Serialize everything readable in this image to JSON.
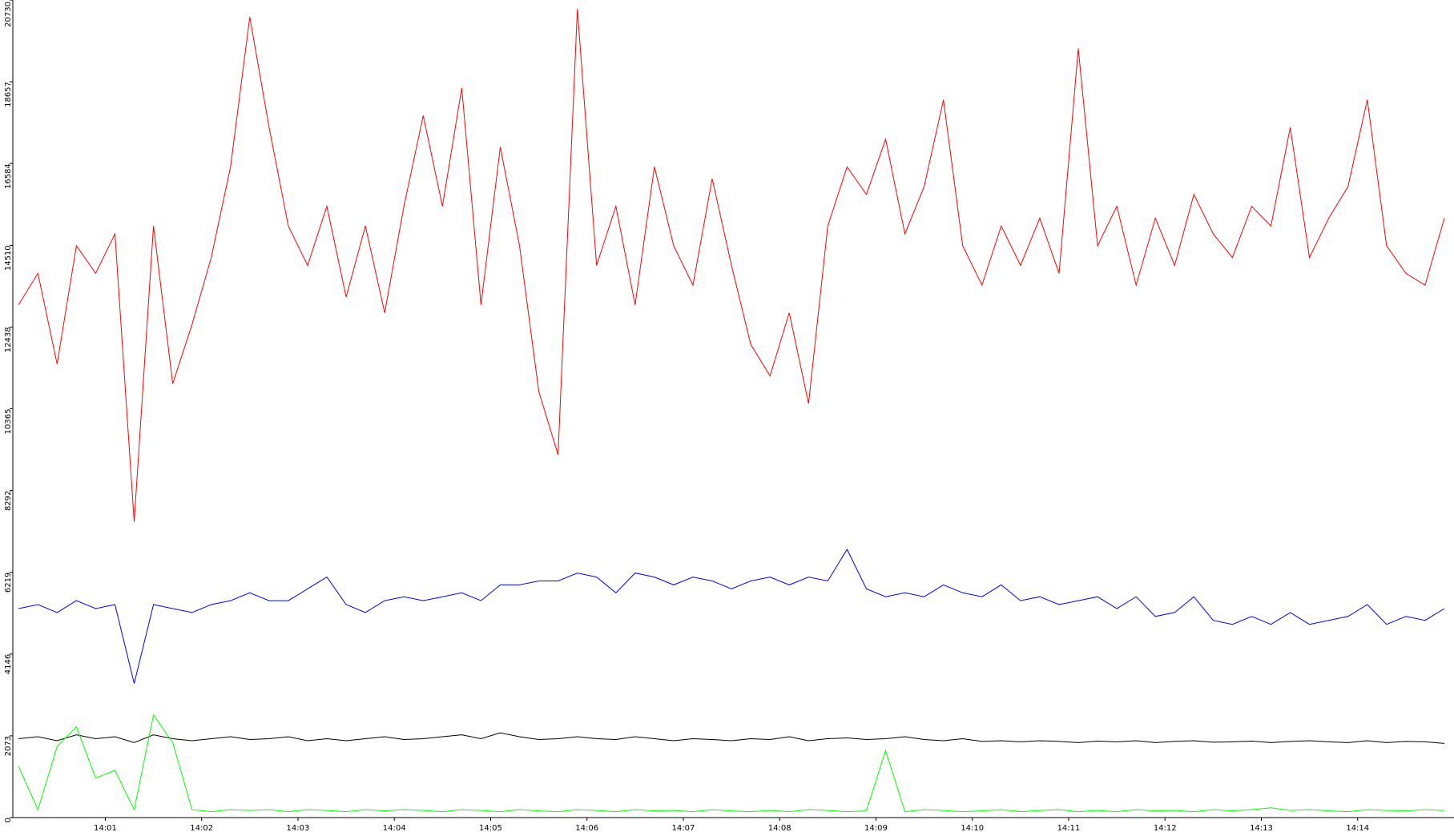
{
  "chart_data": {
    "type": "line",
    "x": [
      0.1,
      0.3,
      0.5,
      0.7,
      0.9,
      1.1,
      1.3,
      1.5,
      1.7,
      1.9,
      2.1,
      2.3,
      2.5,
      2.7,
      2.9,
      3.1,
      3.3,
      3.5,
      3.7,
      3.9,
      4.1,
      4.3,
      4.5,
      4.7,
      4.9,
      5.1,
      5.3,
      5.5,
      5.7,
      5.9,
      6.1,
      6.3,
      6.5,
      6.7,
      6.9,
      7.1,
      7.3,
      7.5,
      7.7,
      7.9,
      8.1,
      8.3,
      8.5,
      8.7,
      8.9,
      9.1,
      9.3,
      9.5,
      9.7,
      9.9,
      10.1,
      10.3,
      10.5,
      10.7,
      10.9,
      11.1,
      11.3,
      11.5,
      11.7,
      11.9,
      12.1,
      12.3,
      12.5,
      12.7,
      12.9,
      13.1,
      13.3,
      13.5,
      13.7,
      13.9,
      14.1,
      14.3,
      14.5,
      14.7,
      14.9
    ],
    "series": [
      {
        "color": "#ff0000",
        "values": [
          13000,
          13800,
          11500,
          14500,
          13800,
          14800,
          7500,
          15000,
          11000,
          12500,
          14200,
          16500,
          20300,
          17500,
          15000,
          14000,
          15500,
          13200,
          15000,
          12800,
          15500,
          17800,
          15500,
          18500,
          13000,
          17000,
          14500,
          10800,
          9200,
          20500,
          14000,
          15500,
          13000,
          16500,
          14500,
          13500,
          16200,
          14000,
          12000,
          11200,
          12800,
          10500,
          15000,
          16500,
          15800,
          17200,
          14800,
          16000,
          18200,
          14500,
          13500,
          15000,
          14000,
          15200,
          13800,
          19500,
          14500,
          15500,
          13500,
          15200,
          14000,
          15800,
          14800,
          14200,
          15500,
          15000,
          17500,
          14200,
          15200,
          16000,
          18200,
          14500,
          13800,
          13500,
          15200
        ]
      },
      {
        "color": "#0000ff",
        "values": [
          5300,
          5400,
          5200,
          5500,
          5300,
          5400,
          3400,
          5400,
          5300,
          5200,
          5400,
          5500,
          5700,
          5500,
          5500,
          5800,
          6100,
          5400,
          5200,
          5500,
          5600,
          5500,
          5600,
          5700,
          5500,
          5900,
          5900,
          6000,
          6000,
          6200,
          6100,
          5700,
          6200,
          6100,
          5900,
          6100,
          6000,
          5800,
          6000,
          6100,
          5900,
          6100,
          6000,
          6800,
          5800,
          5600,
          5700,
          5600,
          5900,
          5700,
          5600,
          5900,
          5500,
          5600,
          5400,
          5500,
          5600,
          5300,
          5600,
          5100,
          5200,
          5600,
          5000,
          4900,
          5100,
          4900,
          5200,
          4900,
          5000,
          5100,
          5400,
          4900,
          5100,
          5000,
          5300
        ]
      },
      {
        "color": "#000000",
        "values": [
          2000,
          2050,
          1950,
          2100,
          2000,
          2050,
          1900,
          2100,
          2000,
          1950,
          2000,
          2050,
          1980,
          2000,
          2050,
          1950,
          2000,
          1950,
          2000,
          2050,
          1980,
          2000,
          2050,
          2100,
          2000,
          2150,
          2050,
          1980,
          2000,
          2050,
          2000,
          1980,
          2050,
          2000,
          1950,
          2000,
          1980,
          1950,
          2000,
          1980,
          2050,
          1950,
          2000,
          2020,
          1980,
          2000,
          2050,
          1980,
          1950,
          2000,
          1930,
          1950,
          1920,
          1950,
          1930,
          1900,
          1940,
          1920,
          1950,
          1900,
          1930,
          1950,
          1910,
          1920,
          1940,
          1900,
          1930,
          1950,
          1920,
          1900,
          1950,
          1900,
          1930,
          1920,
          1880
        ]
      },
      {
        "color": "#00ff00",
        "values": [
          1300,
          200,
          1800,
          2300,
          1000,
          1200,
          200,
          2600,
          1900,
          200,
          150,
          200,
          180,
          200,
          150,
          200,
          180,
          150,
          200,
          170,
          200,
          180,
          150,
          200,
          180,
          150,
          200,
          170,
          150,
          200,
          180,
          150,
          200,
          170,
          180,
          150,
          200,
          170,
          150,
          180,
          150,
          200,
          180,
          150,
          170,
          1700,
          150,
          200,
          180,
          150,
          170,
          200,
          150,
          180,
          200,
          150,
          180,
          150,
          200,
          170,
          180,
          150,
          200,
          170,
          200,
          250,
          180,
          200,
          170,
          150,
          200,
          180,
          170,
          200,
          180
        ]
      }
    ],
    "xlim": [
      0.04,
      15.0
    ],
    "xticks": [
      {
        "value": 1,
        "label": "14:01"
      },
      {
        "value": 2,
        "label": "14:02"
      },
      {
        "value": 3,
        "label": "14:03"
      },
      {
        "value": 4,
        "label": "14:04"
      },
      {
        "value": 5,
        "label": "14:05"
      },
      {
        "value": 6,
        "label": "14:06"
      },
      {
        "value": 7,
        "label": "14:07"
      },
      {
        "value": 8,
        "label": "14:08"
      },
      {
        "value": 9,
        "label": "14:09"
      },
      {
        "value": 10,
        "label": "14:10"
      },
      {
        "value": 11,
        "label": "14:11"
      },
      {
        "value": 12,
        "label": "14:12"
      },
      {
        "value": 13,
        "label": "14:13"
      },
      {
        "value": 14,
        "label": "14:14"
      }
    ],
    "ylim": [
      0,
      20730
    ],
    "yticks": [
      0,
      2073,
      4146,
      6219,
      8292,
      10365,
      12438,
      14510,
      16584,
      18657,
      20730
    ]
  }
}
